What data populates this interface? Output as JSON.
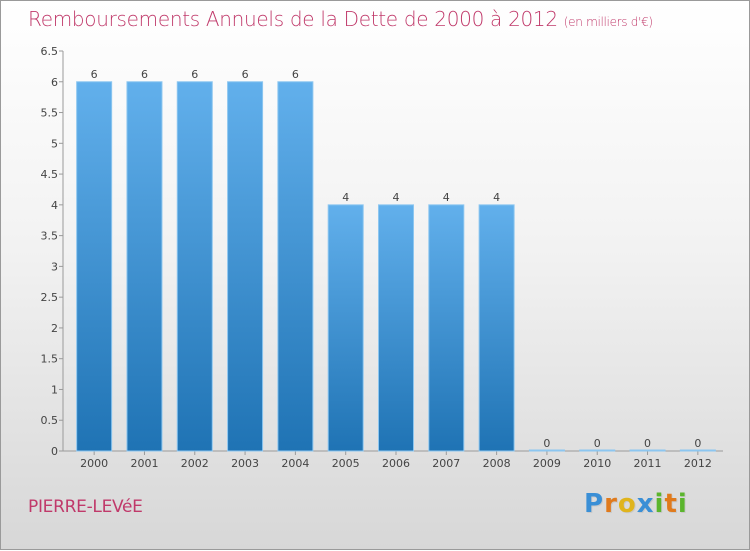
{
  "title": "Remboursements Annuels de la Dette de 2000 à 2012",
  "subtitle": "(en milliers d'€)",
  "commune": "PIERRE-LEVéE",
  "brand": {
    "letters": [
      "P",
      "r",
      "o",
      "x",
      "i",
      "t",
      "i"
    ],
    "colors": [
      "#3a8fd6",
      "#e07a1c",
      "#e0b41c",
      "#3a8fd6",
      "#5bb52d",
      "#e07a1c",
      "#5bb52d"
    ]
  },
  "colors": {
    "bar_top": "#62b0ec",
    "bar_bottom": "#1f73b4",
    "title": "#c0396a"
  },
  "chart_data": {
    "type": "bar",
    "categories": [
      "2000",
      "2001",
      "2002",
      "2003",
      "2004",
      "2005",
      "2006",
      "2007",
      "2008",
      "2009",
      "2010",
      "2011",
      "2012"
    ],
    "values": [
      6,
      6,
      6,
      6,
      6,
      4,
      4,
      4,
      4,
      0,
      0,
      0,
      0
    ],
    "value_labels": [
      "6",
      "6",
      "6",
      "6",
      "6",
      "4",
      "4",
      "4",
      "4",
      "0",
      "0",
      "0",
      "0"
    ],
    "yticks": [
      "0",
      "0.5",
      "1",
      "1.5",
      "2",
      "2.5",
      "3",
      "3.5",
      "4",
      "4.5",
      "5",
      "5.5",
      "6",
      "6.5"
    ],
    "ylim": [
      0,
      6.5
    ],
    "grid": false,
    "legend": "none"
  }
}
